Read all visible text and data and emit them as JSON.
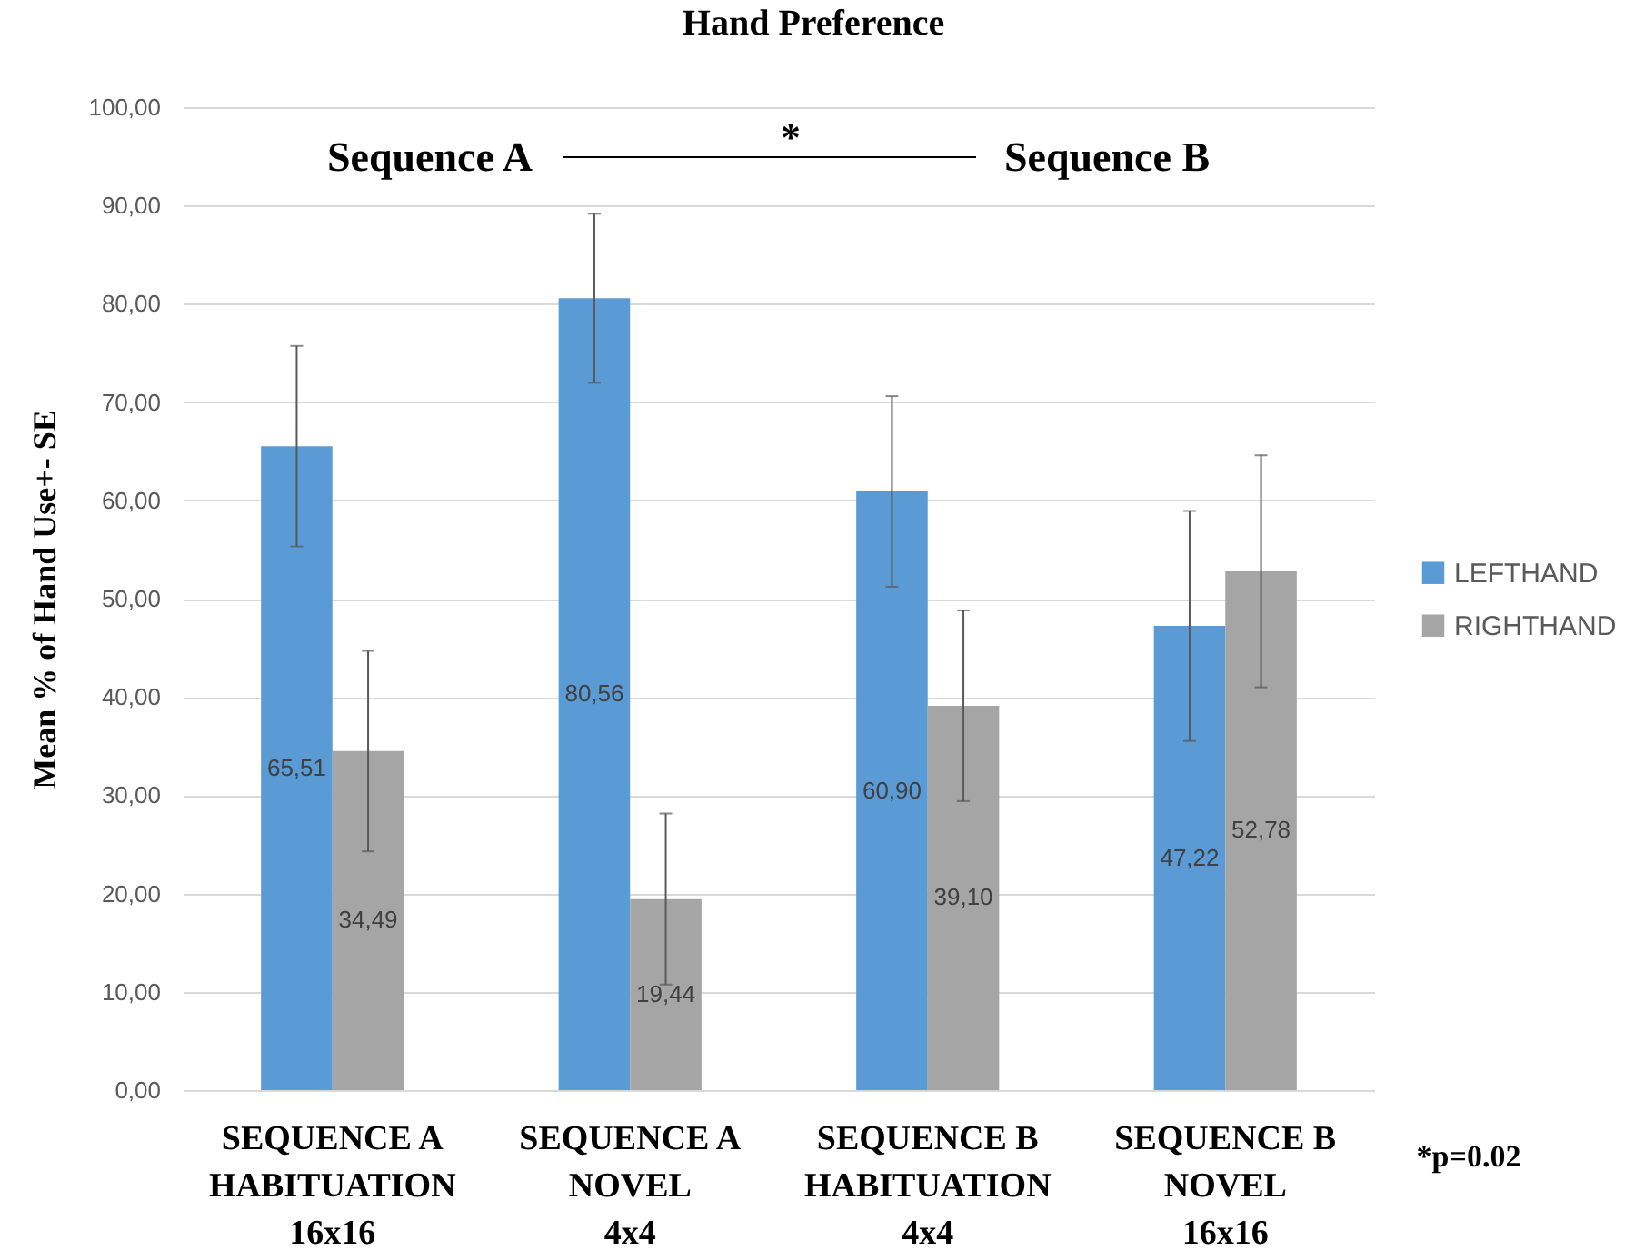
{
  "chart_data": {
    "type": "bar",
    "title": "Hand Preference",
    "ylabel": "Mean % of Hand Use+- SE",
    "categories": [
      "SEQUENCE A\nHABITUATION\n16x16",
      "SEQUENCE A\nNOVEL\n4x4",
      "SEQUENCE B\nHABITUATION\n4x4",
      "SEQUENCE B\nNOVEL\n16x16"
    ],
    "series": [
      {
        "name": "LEFTHAND",
        "color": "#5b9bd5",
        "values": [
          65.51,
          80.56,
          60.9,
          47.22
        ],
        "errors": [
          10.2,
          8.6,
          9.7,
          11.7
        ],
        "value_labels": [
          "65,51",
          "80,56",
          "60,90",
          "47,22"
        ]
      },
      {
        "name": "RIGHTHAND",
        "color": "#a5a5a5",
        "values": [
          34.49,
          19.44,
          39.1,
          52.78
        ],
        "errors": [
          10.2,
          8.7,
          9.7,
          11.8
        ],
        "value_labels": [
          "34,49",
          "19,44",
          "39,10",
          "52,78"
        ]
      }
    ],
    "ylim": [
      0,
      100
    ],
    "yticks": [
      {
        "value": 0,
        "label": "0,00"
      },
      {
        "value": 10,
        "label": "10,00"
      },
      {
        "value": 20,
        "label": "20,00"
      },
      {
        "value": 30,
        "label": "30,00"
      },
      {
        "value": 40,
        "label": "40,00"
      },
      {
        "value": 50,
        "label": "50,00"
      },
      {
        "value": 60,
        "label": "60,00"
      },
      {
        "value": 70,
        "label": "70,00"
      },
      {
        "value": 80,
        "label": "80,00"
      },
      {
        "value": 90,
        "label": "90,00"
      },
      {
        "value": 100,
        "label": "100,00"
      }
    ],
    "grid": "y",
    "legend": "right",
    "annotations": [
      "Sequence A",
      "*",
      "Sequence B",
      "*p=0.02"
    ]
  }
}
